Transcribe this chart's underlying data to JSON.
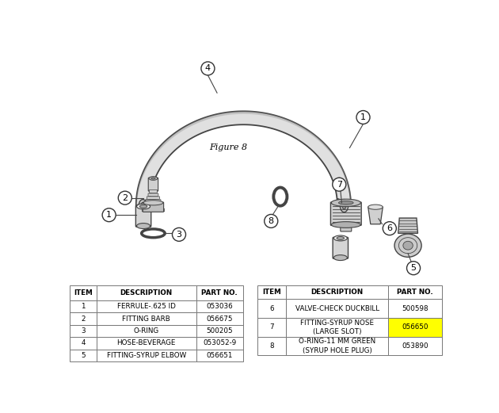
{
  "figure_label": "Figure 8",
  "bg_color": "#ffffff",
  "table1": {
    "headers": [
      "ITEM",
      "DESCRIPTION",
      "PART NO."
    ],
    "rows": [
      [
        "1",
        "FERRULE-.625 ID",
        "053036"
      ],
      [
        "2",
        "FITTING BARB",
        "056675"
      ],
      [
        "3",
        "O-RING",
        "500205"
      ],
      [
        "4",
        "HOSE-BEVERAGE",
        "053052-9"
      ],
      [
        "5",
        "FITTING-SYRUP ELBOW",
        "056651"
      ]
    ]
  },
  "table2": {
    "headers": [
      "ITEM",
      "DESCRIPTION",
      "PART NO."
    ],
    "rows": [
      [
        "6",
        "VALVE-CHECK DUCKBILL",
        "500598"
      ],
      [
        "7",
        "FITTING-SYRUP NOSE\n(LARGE SLOT)",
        "056650"
      ],
      [
        "8",
        "O-RING-11 MM GREEN\n(SYRUP HOLE PLUG)",
        "053890"
      ]
    ],
    "highlight_row": 1,
    "highlight_color": "#ffff00"
  },
  "line_color": "#444444",
  "text_color": "#000000",
  "callout_circle_color": "#ffffff",
  "callout_circle_edge": "#333333"
}
